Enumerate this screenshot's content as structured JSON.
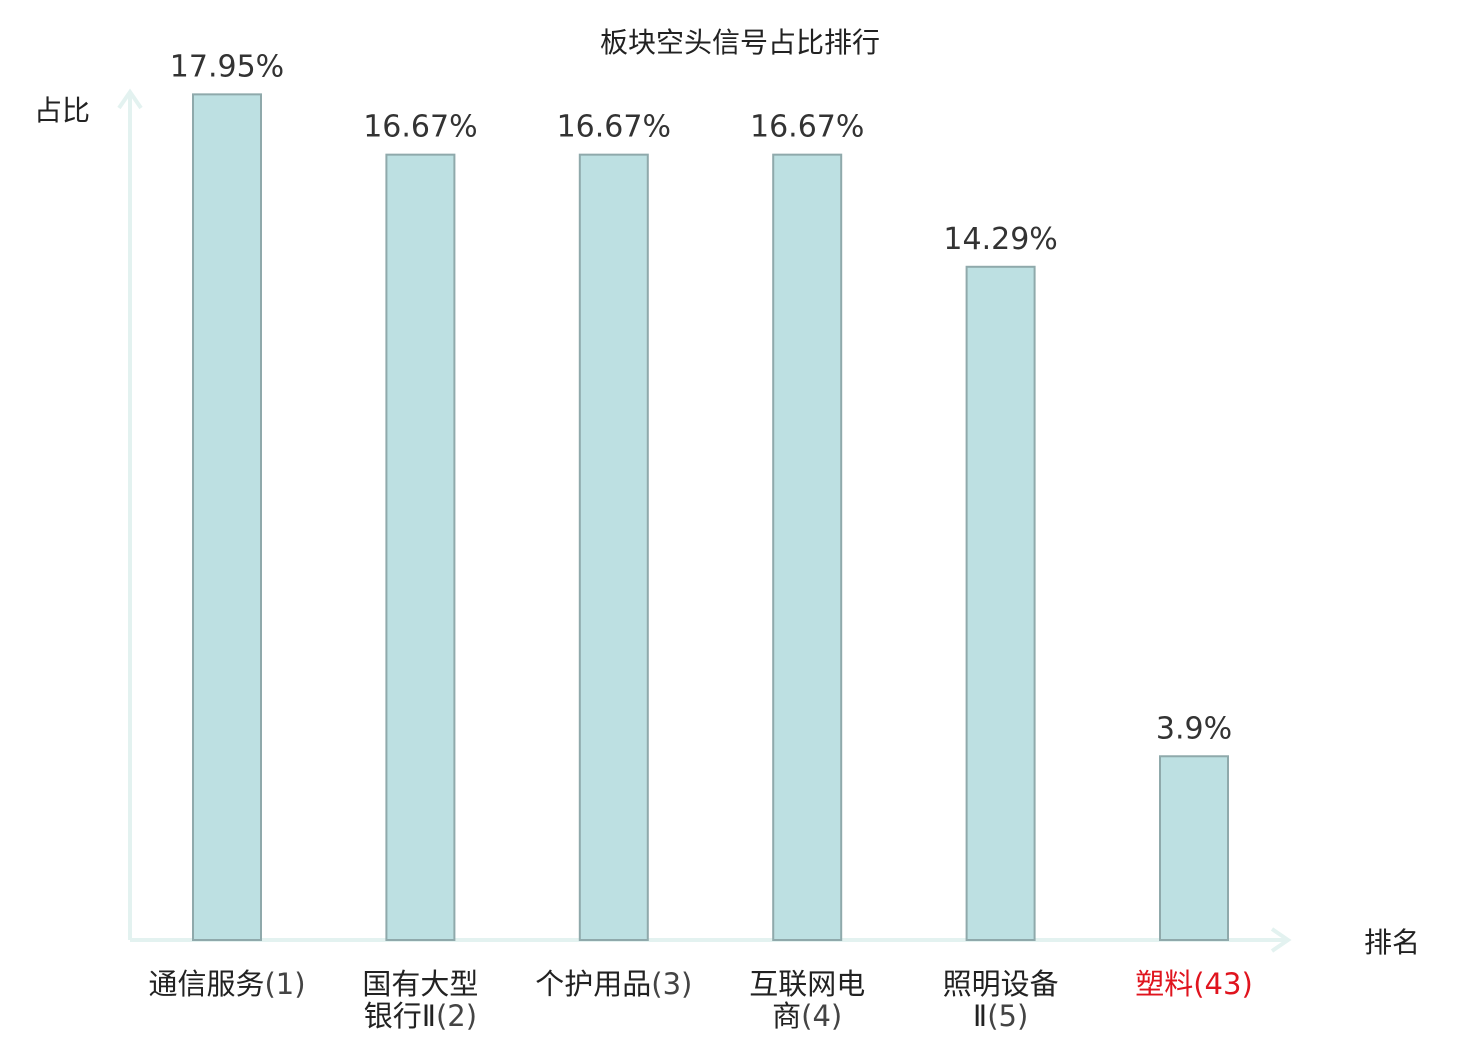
{
  "chart_data": {
    "type": "bar",
    "title": "板块空头信号占比排行",
    "ylabel": "占比",
    "xlabel": "排名",
    "ylim": [
      0,
      18
    ],
    "grid": false,
    "categories": [
      {
        "lines": [
          "通信服务"
        ],
        "rank": "(1)",
        "highlight": false
      },
      {
        "lines": [
          "国有大型",
          "银行Ⅱ"
        ],
        "rank": "(2)",
        "highlight": false
      },
      {
        "lines": [
          "个护用品"
        ],
        "rank": "(3)",
        "highlight": false
      },
      {
        "lines": [
          "互联网电",
          "商"
        ],
        "rank": "(4)",
        "highlight": false
      },
      {
        "lines": [
          "照明设备",
          "Ⅱ"
        ],
        "rank": "(5)",
        "highlight": false
      },
      {
        "lines": [
          "塑料"
        ],
        "rank": "(43)",
        "highlight": true
      }
    ],
    "values": [
      17.95,
      16.67,
      16.67,
      16.67,
      14.29,
      3.9
    ],
    "value_labels": [
      "17.95%",
      "16.67%",
      "16.67%",
      "16.67%",
      "14.29%",
      "3.9%"
    ],
    "colors": {
      "bar": "#bde0e2",
      "bar_border": "#8fa9ab",
      "axis": "#e3f2f0",
      "highlight": "#e0141e"
    }
  }
}
